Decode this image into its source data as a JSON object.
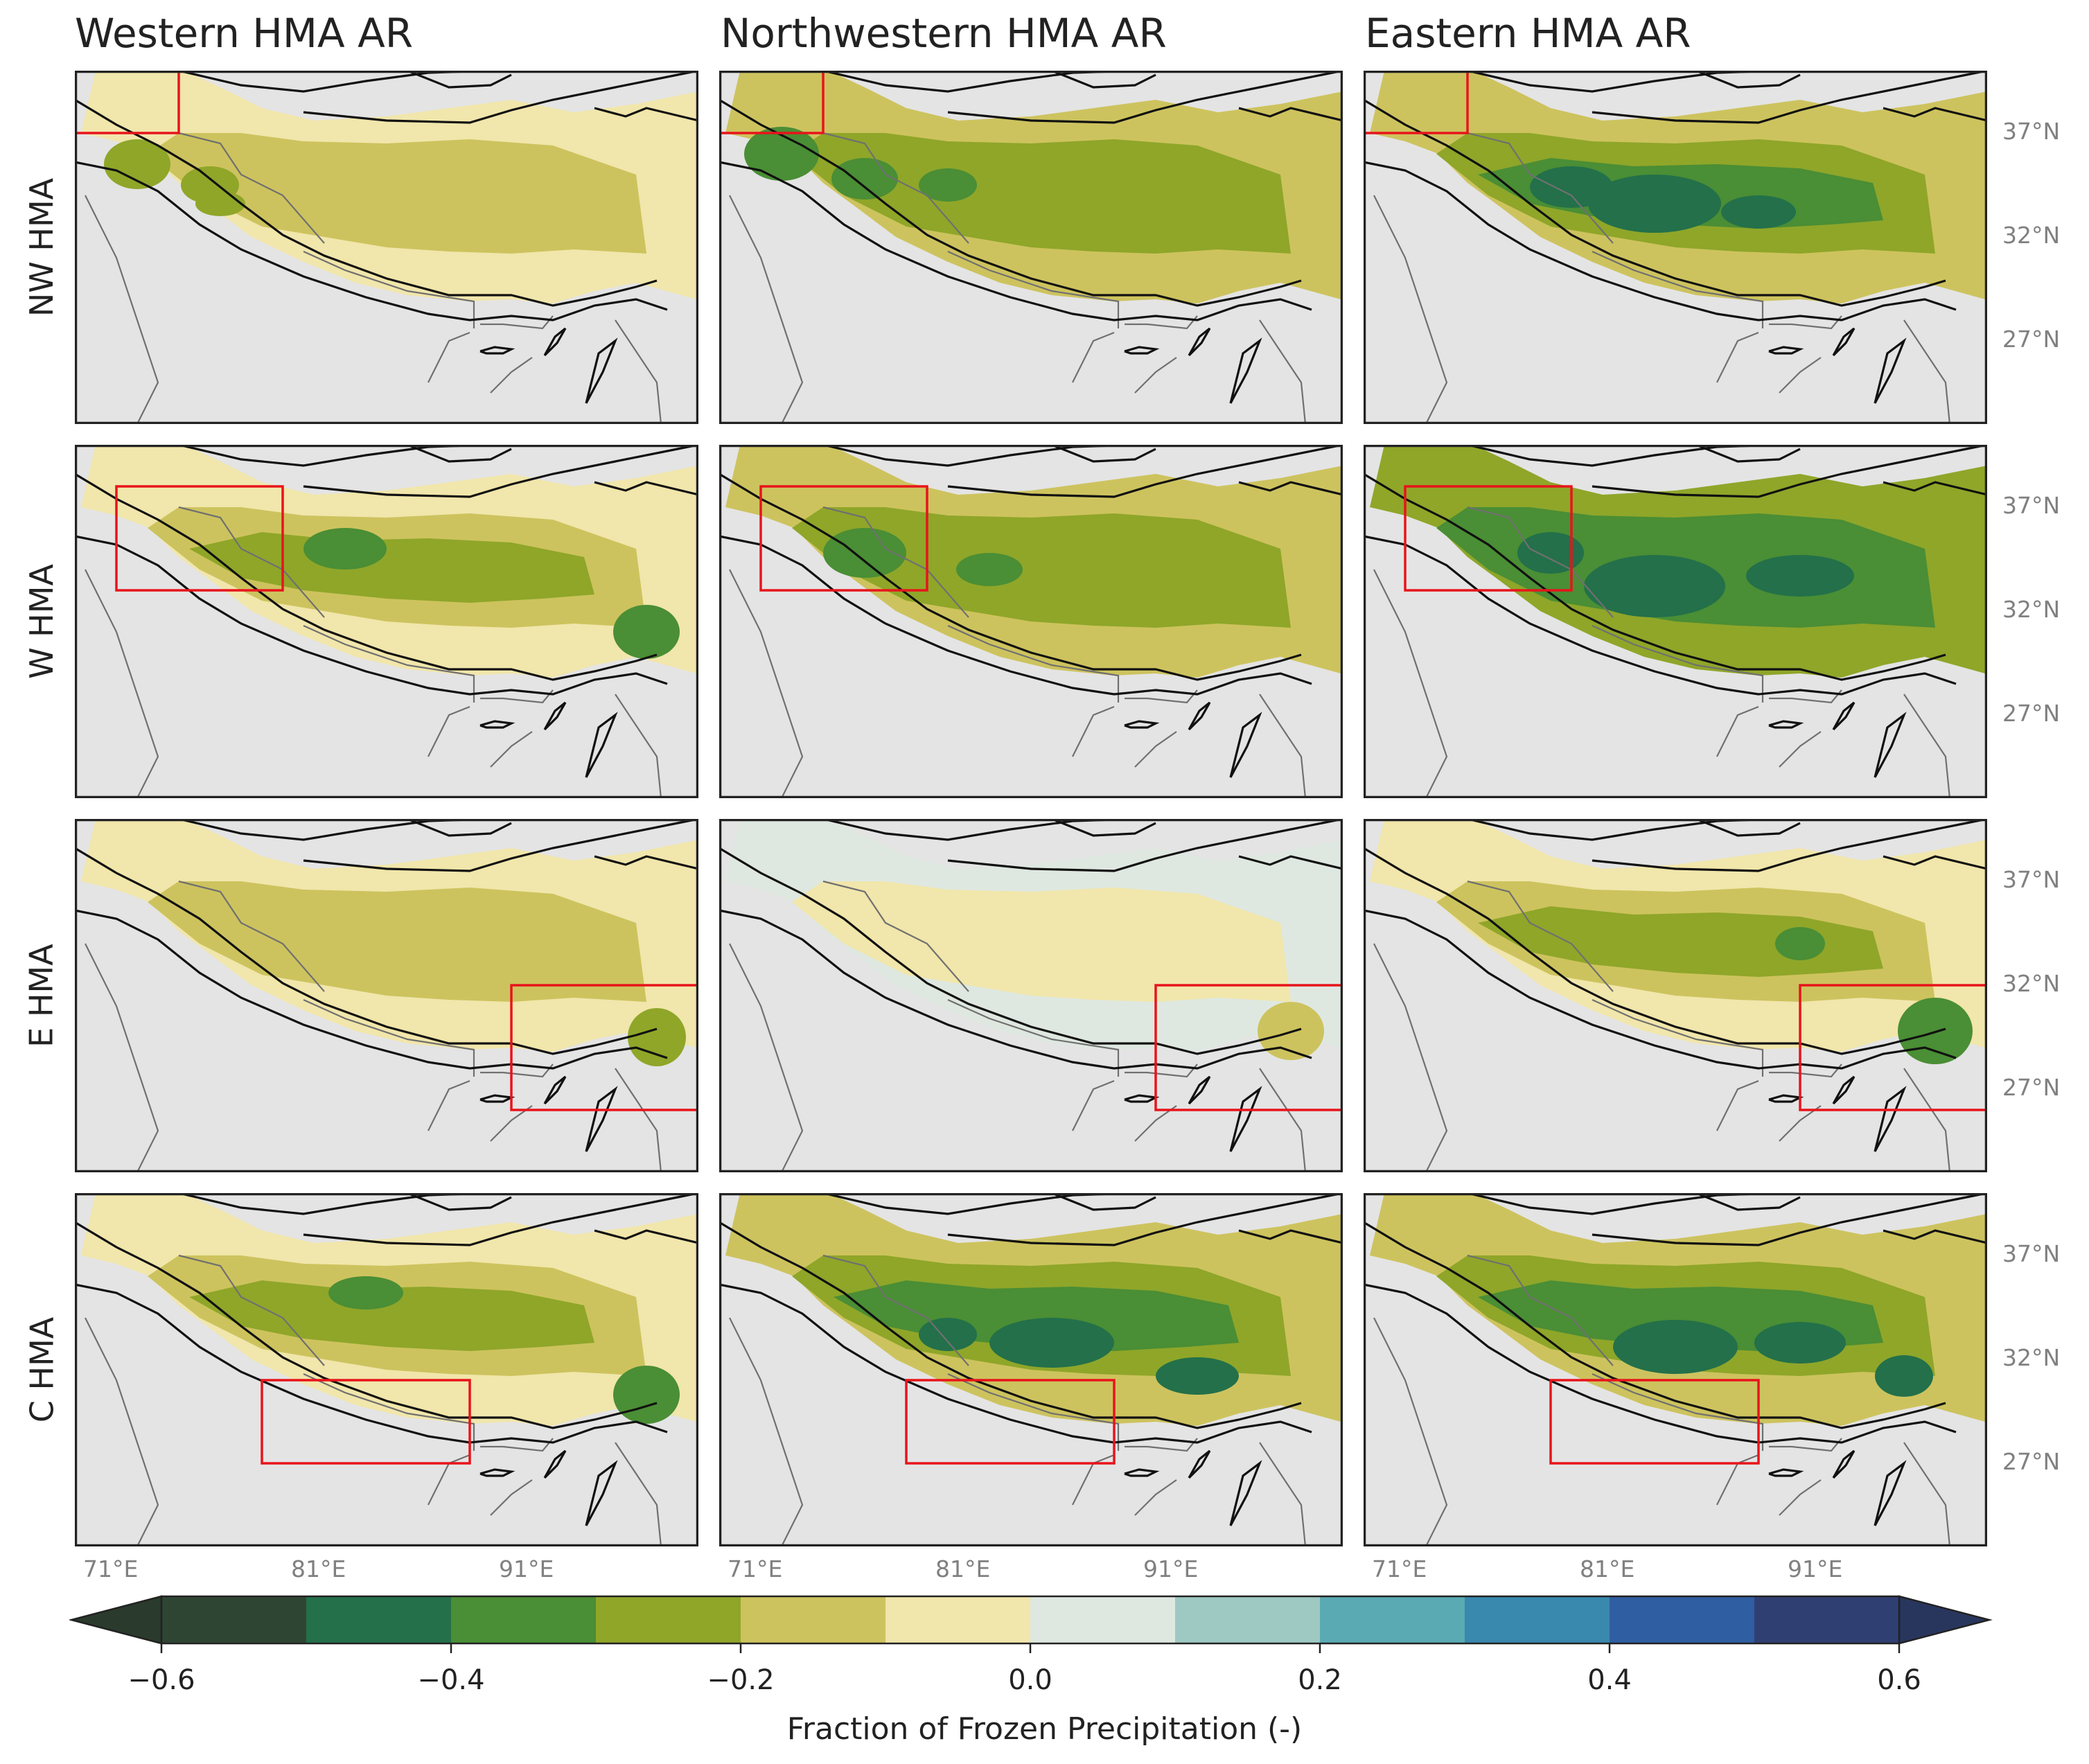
{
  "columns": [
    "Western HMA AR",
    "Northwestern HMA AR",
    "Eastern HMA AR"
  ],
  "rows": [
    "NW HMA",
    "W HMA",
    "E HMA",
    "C HMA"
  ],
  "lat_ticks": [
    "37°N",
    "32°N",
    "27°N"
  ],
  "lon_ticks": [
    "71°E",
    "81°E",
    "91°E"
  ],
  "map_extent": {
    "lon_min": 69,
    "lon_max": 99,
    "lat_min": 22,
    "lat_max": 39
  },
  "colorbar": {
    "label": "Fraction of Frozen Precipitation (-)",
    "ticks": [
      "−0.6",
      "−0.4",
      "−0.2",
      "0.0",
      "0.2",
      "0.4",
      "0.6"
    ],
    "min": -0.6,
    "max": 0.6,
    "step": 0.1,
    "extend": "both",
    "colors": [
      "#2f4534",
      "#23704a",
      "#4a8e35",
      "#8fa629",
      "#cdc35e",
      "#f1e6ab",
      "#dfe8e0",
      "#9ec9c2",
      "#5aaab3",
      "#3988ad",
      "#2f5ea2",
      "#303f72"
    ],
    "under_color": "#2a3a2c",
    "over_color": "#28365e"
  },
  "colors": {
    "background": "#e4e4e4",
    "box": "#e8141b",
    "coast": "#111111",
    "border": "#707070"
  },
  "region_boxes": {
    "NW HMA": {
      "lon": [
        69,
        74
      ],
      "lat": [
        36,
        39
      ]
    },
    "W HMA": {
      "lon": [
        71,
        79
      ],
      "lat": [
        32,
        37
      ]
    },
    "E HMA": {
      "lon": [
        90,
        99
      ],
      "lat": [
        25,
        31
      ]
    },
    "C HMA": {
      "lon": [
        78,
        88
      ],
      "lat": [
        26,
        30
      ]
    }
  },
  "panels": [
    {
      "row": "NW HMA",
      "col": "Western HMA AR",
      "dominant_value": -0.2
    },
    {
      "row": "NW HMA",
      "col": "Northwestern HMA AR",
      "dominant_value": -0.3
    },
    {
      "row": "NW HMA",
      "col": "Eastern HMA AR",
      "dominant_value": -0.35
    },
    {
      "row": "W HMA",
      "col": "Western HMA AR",
      "dominant_value": -0.25
    },
    {
      "row": "W HMA",
      "col": "Northwestern HMA AR",
      "dominant_value": -0.3
    },
    {
      "row": "W HMA",
      "col": "Eastern HMA AR",
      "dominant_value": -0.4
    },
    {
      "row": "E HMA",
      "col": "Western HMA AR",
      "dominant_value": -0.2
    },
    {
      "row": "E HMA",
      "col": "Northwestern HMA AR",
      "dominant_value": -0.1
    },
    {
      "row": "E HMA",
      "col": "Eastern HMA AR",
      "dominant_value": -0.25
    },
    {
      "row": "C HMA",
      "col": "Western HMA AR",
      "dominant_value": -0.25
    },
    {
      "row": "C HMA",
      "col": "Northwestern HMA AR",
      "dominant_value": -0.35
    },
    {
      "row": "C HMA",
      "col": "Eastern HMA AR",
      "dominant_value": -0.35
    }
  ]
}
